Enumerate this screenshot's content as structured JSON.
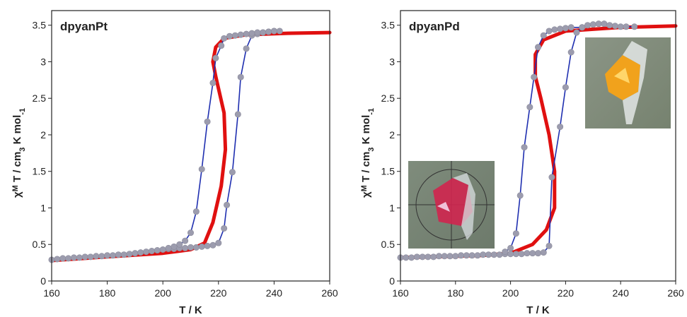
{
  "chart_data": [
    {
      "type": "line",
      "title": "dpyanPt",
      "xlabel": "T / K",
      "ylabel": [
        "χ",
        "M",
        " T / cm",
        "3",
        " K mol",
        "-1"
      ],
      "xlim": [
        160,
        260
      ],
      "ylim": [
        0,
        3.7
      ],
      "xticks": [
        160,
        180,
        200,
        220,
        240,
        260
      ],
      "yticks": [
        0,
        0.5,
        1,
        1.5,
        2,
        2.5,
        3,
        3.5
      ],
      "series": [
        {
          "color": "#1f2fb0",
          "marker_color": "#9c9cae",
          "markers": true,
          "x": [
            160,
            162,
            164,
            166,
            168,
            170,
            172,
            174,
            176,
            178,
            180,
            182,
            184,
            186,
            188,
            190,
            192,
            194,
            196,
            198,
            200,
            202,
            204,
            206,
            208,
            210,
            212,
            214,
            216,
            218,
            220,
            222,
            223,
            225,
            227,
            228,
            230,
            232,
            234,
            236,
            238,
            240
          ],
          "values": [
            0.29,
            0.3,
            0.31,
            0.31,
            0.32,
            0.32,
            0.33,
            0.33,
            0.34,
            0.34,
            0.35,
            0.35,
            0.36,
            0.36,
            0.37,
            0.38,
            0.39,
            0.4,
            0.41,
            0.42,
            0.43,
            0.44,
            0.44,
            0.45,
            0.45,
            0.46,
            0.46,
            0.47,
            0.48,
            0.49,
            0.52,
            0.72,
            1.04,
            1.49,
            2.28,
            2.79,
            3.18,
            3.36,
            3.38,
            3.4,
            3.41,
            3.42
          ]
        },
        {
          "color": "#1f2fb0",
          "marker_color": "#9c9cae",
          "markers": true,
          "x": [
            242,
            240,
            238,
            236,
            234,
            232,
            230,
            228,
            226,
            224,
            222,
            221,
            219,
            218,
            216,
            214,
            212,
            210,
            208,
            206,
            204,
            202
          ],
          "values": [
            3.42,
            3.42,
            3.41,
            3.4,
            3.4,
            3.39,
            3.38,
            3.37,
            3.36,
            3.35,
            3.32,
            3.22,
            3.05,
            2.71,
            2.18,
            1.53,
            0.95,
            0.66,
            0.55,
            0.5,
            0.47,
            0.45
          ]
        },
        {
          "color": "#e01010",
          "markers": false,
          "line_width": 5,
          "x": [
            160,
            180,
            200,
            210,
            215,
            218,
            221,
            222.5,
            222,
            219,
            218,
            219,
            222,
            230,
            245,
            260
          ],
          "values": [
            0.28,
            0.33,
            0.38,
            0.43,
            0.52,
            0.8,
            1.3,
            1.8,
            2.3,
            2.8,
            3.0,
            3.2,
            3.32,
            3.37,
            3.39,
            3.4
          ]
        }
      ]
    },
    {
      "type": "line",
      "title": "dpyanPd",
      "xlabel": "T / K",
      "ylabel": [
        "χ",
        "M",
        " T / cm",
        "3",
        " K mol",
        "-1"
      ],
      "xlim": [
        160,
        260
      ],
      "ylim": [
        0,
        3.7
      ],
      "xticks": [
        160,
        180,
        200,
        220,
        240,
        260
      ],
      "yticks": [
        0,
        0.5,
        1,
        1.5,
        2,
        2.5,
        3,
        3.5
      ],
      "series": [
        {
          "color": "#1f2fb0",
          "marker_color": "#9c9cae",
          "markers": true,
          "x": [
            160,
            162,
            164,
            166,
            168,
            170,
            172,
            174,
            176,
            178,
            180,
            182,
            184,
            186,
            188,
            190,
            192,
            194,
            196,
            198,
            200,
            202,
            204,
            206,
            208,
            210,
            212,
            214,
            215,
            218,
            220,
            222,
            224,
            226,
            228,
            230,
            232,
            234,
            236,
            238,
            240,
            242,
            245
          ],
          "values": [
            0.32,
            0.32,
            0.32,
            0.33,
            0.33,
            0.33,
            0.33,
            0.34,
            0.34,
            0.34,
            0.34,
            0.35,
            0.35,
            0.35,
            0.35,
            0.36,
            0.36,
            0.36,
            0.36,
            0.37,
            0.37,
            0.37,
            0.37,
            0.38,
            0.38,
            0.38,
            0.39,
            0.48,
            1.42,
            2.11,
            2.65,
            3.13,
            3.4,
            3.47,
            3.5,
            3.51,
            3.52,
            3.52,
            3.5,
            3.49,
            3.48,
            3.48,
            3.48
          ]
        },
        {
          "color": "#1f2fb0",
          "marker_color": "#9c9cae",
          "markers": true,
          "x": [
            226,
            222,
            220,
            218,
            216,
            214,
            212,
            210,
            208.5,
            207,
            205,
            203.5,
            202,
            200,
            198
          ],
          "values": [
            3.47,
            3.47,
            3.46,
            3.45,
            3.44,
            3.42,
            3.36,
            3.2,
            2.79,
            2.38,
            1.83,
            1.17,
            0.65,
            0.45,
            0.4
          ]
        },
        {
          "color": "#e01010",
          "markers": false,
          "line_width": 5,
          "x": [
            160,
            190,
            200,
            208,
            213,
            216,
            216,
            214,
            211,
            209,
            209,
            212,
            220,
            240,
            260
          ],
          "values": [
            0.32,
            0.35,
            0.38,
            0.5,
            0.7,
            1.0,
            1.5,
            2.0,
            2.5,
            2.8,
            3.1,
            3.3,
            3.42,
            3.47,
            3.49
          ]
        }
      ]
    }
  ]
}
